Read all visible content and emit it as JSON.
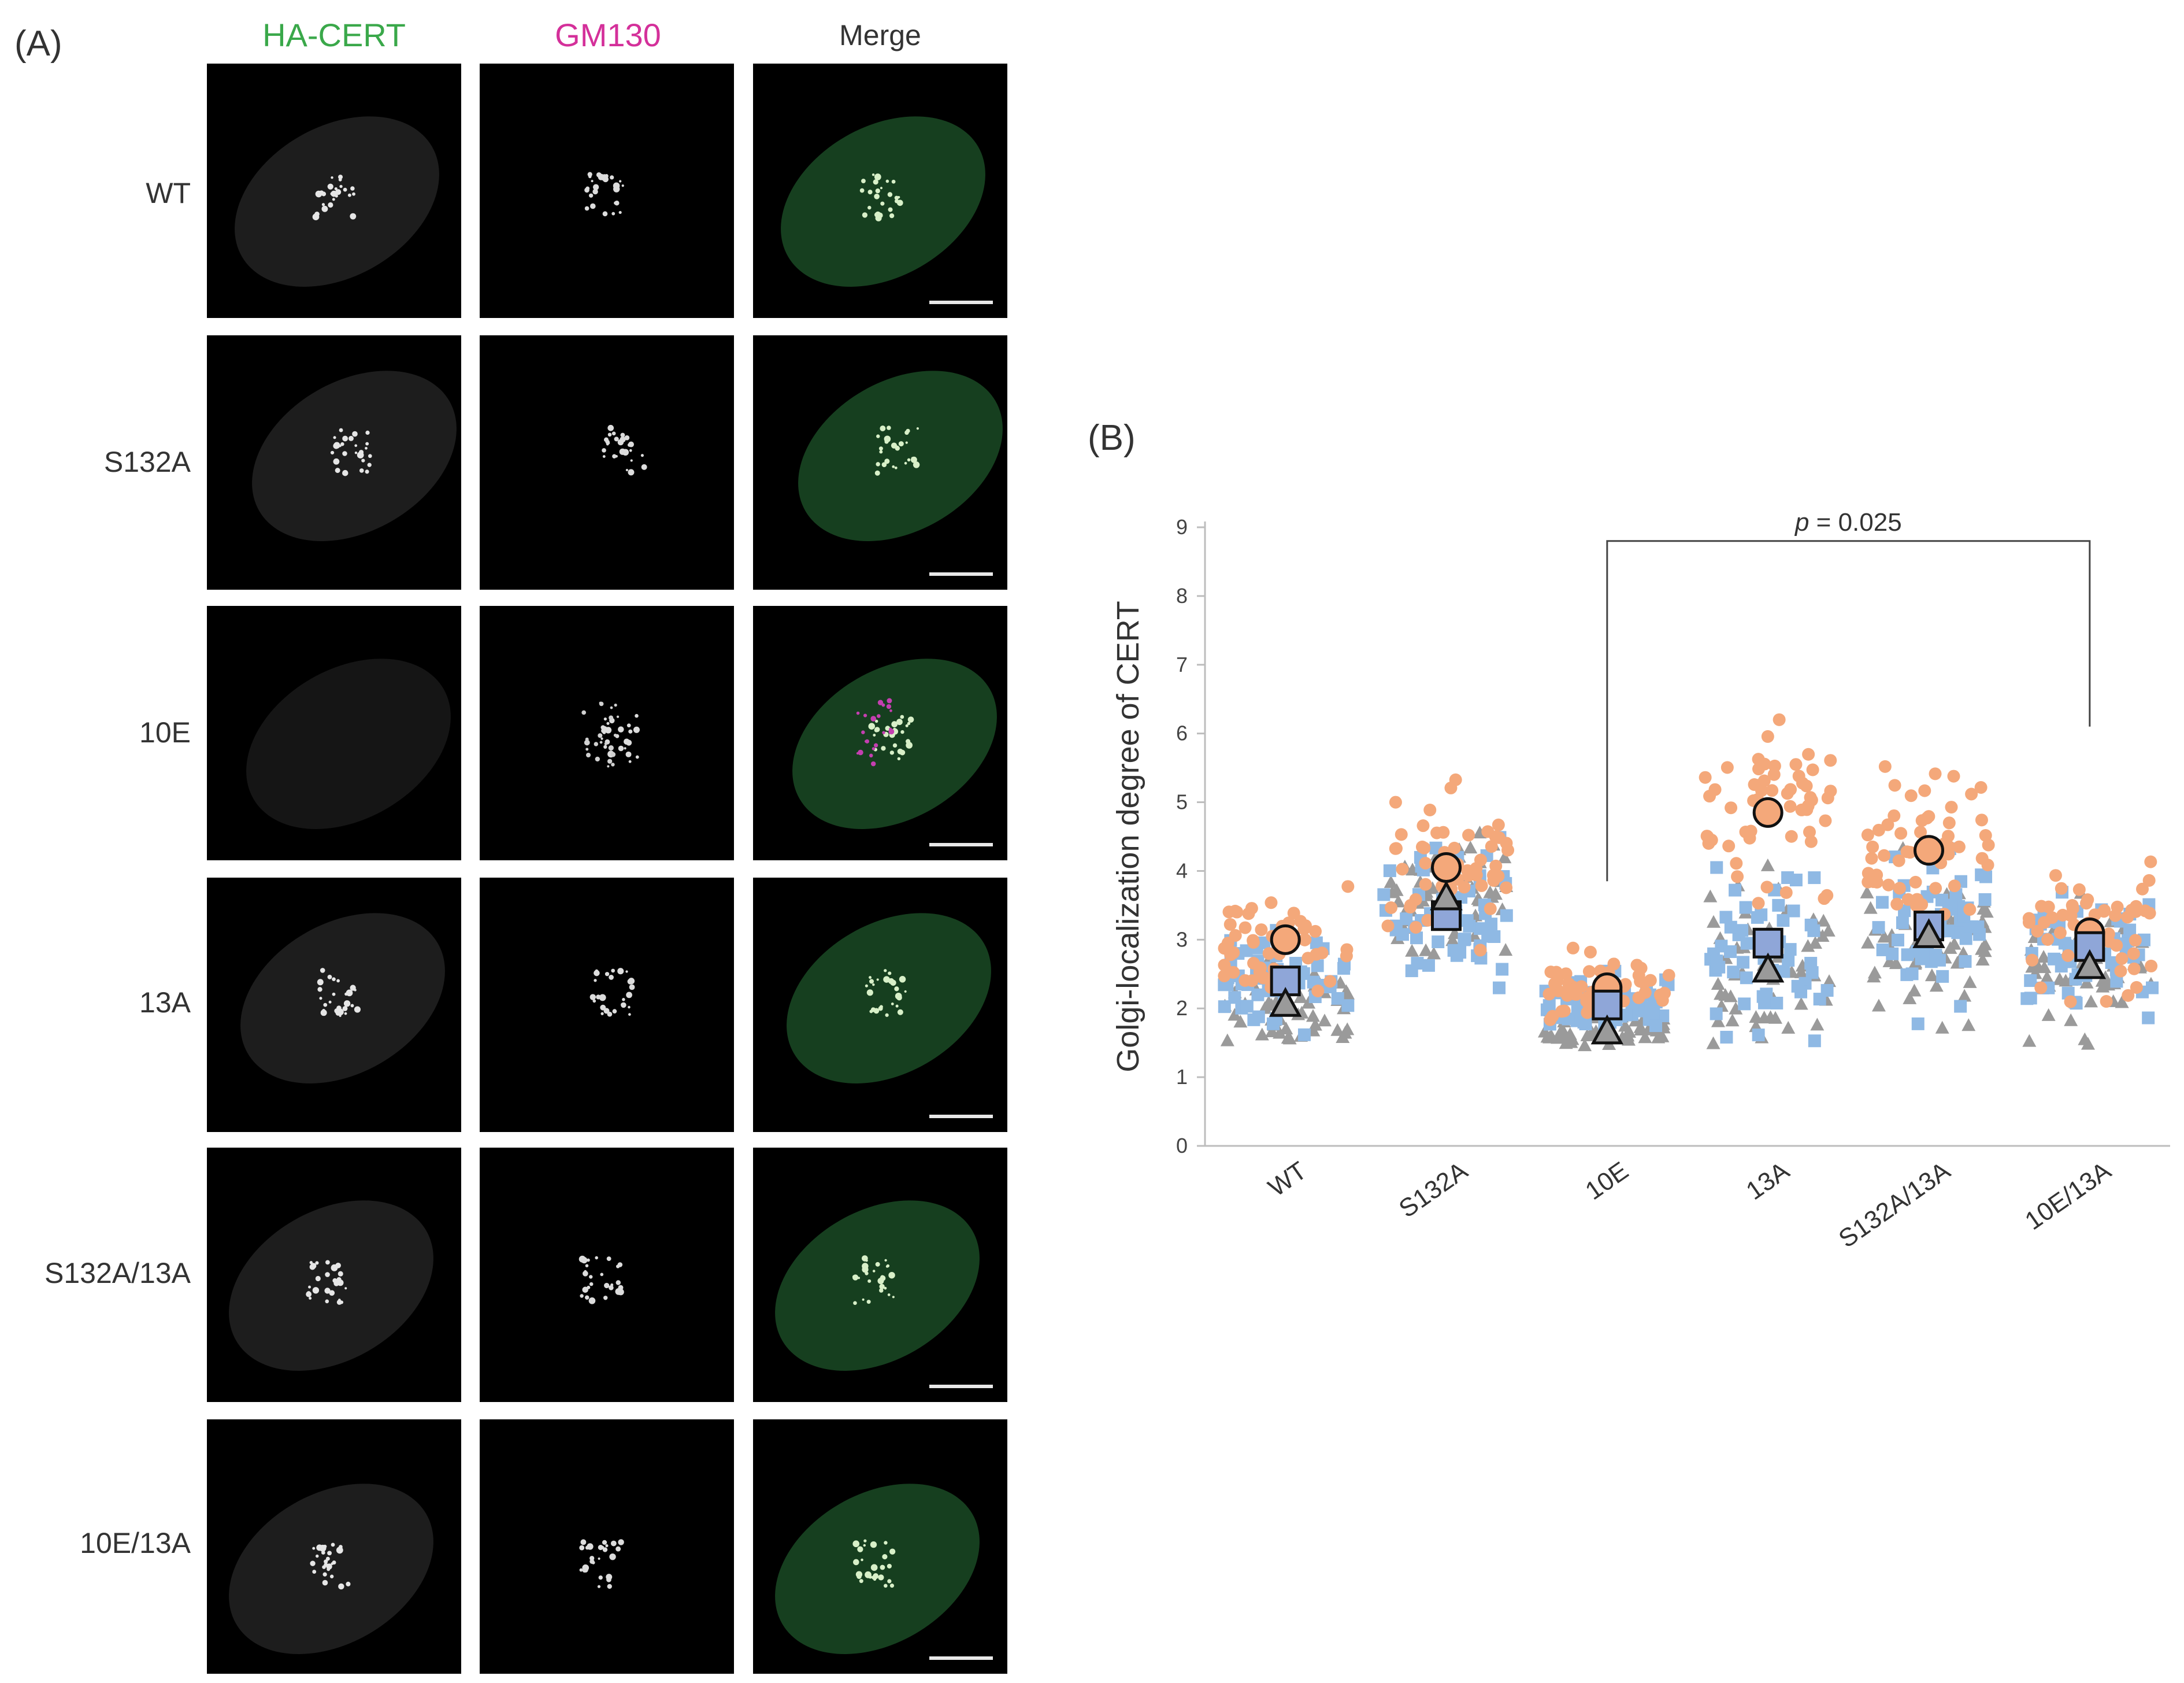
{
  "panel_a": {
    "label": "(A)",
    "columns": [
      {
        "label": "HA-CERT",
        "color": "#3aa84a"
      },
      {
        "label": "GM130",
        "color": "#d4309a"
      },
      {
        "label": "Merge",
        "color": "#333333"
      }
    ],
    "rows": [
      "WT",
      "S132A",
      "10E",
      "13A",
      "S132A/13A",
      "10E/13A"
    ]
  },
  "panel_b": {
    "label": "(B)"
  },
  "chart_data": {
    "type": "scatter",
    "title": "",
    "ylabel": "Golgi-localization degree of CERT",
    "xlabel": "",
    "ylim": [
      0,
      9
    ],
    "yticks": [
      0,
      1,
      2,
      3,
      4,
      5,
      6,
      7,
      8,
      9
    ],
    "categories": [
      "WT",
      "S132A",
      "10E",
      "13A",
      "S132A/13A",
      "10E/13A"
    ],
    "colors": {
      "orange": "#f4a87a",
      "blue": "#8fb9e4",
      "gray": "#9a9a9a",
      "mean_circle": "#f4a87a",
      "mean_square": "#8fa6d8",
      "mean_triangle": "#9a9a9a"
    },
    "means": {
      "circle": [
        3.0,
        4.05,
        2.3,
        4.85,
        4.3,
        3.1
      ],
      "square": [
        2.4,
        3.35,
        2.05,
        2.95,
        3.2,
        2.9
      ],
      "triangle": [
        2.05,
        3.6,
        1.65,
        2.55,
        3.05,
        2.6
      ]
    },
    "annotation": {
      "text": "p = 0.025",
      "p_italic": "p",
      "p_rest": " = 0.025",
      "from": "10E",
      "to": "10E/13A"
    }
  }
}
